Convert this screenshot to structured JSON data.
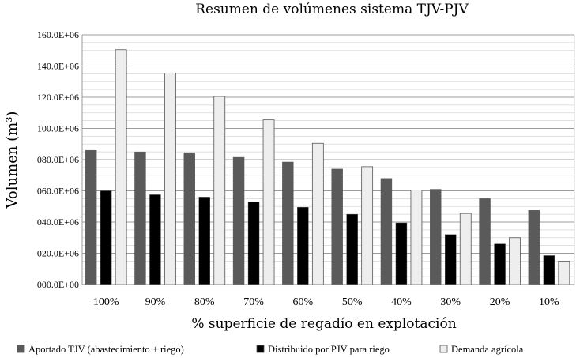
{
  "chart_data": {
    "type": "bar",
    "title": "Resumen de volúmenes sistema TJV-PJV",
    "xlabel": "% superficie de regadío en explotación",
    "ylabel": "Volumen (m³)",
    "ylim": [
      0,
      160000000
    ],
    "yticks": [
      0,
      20000000,
      40000000,
      60000000,
      80000000,
      100000000,
      120000000,
      140000000,
      160000000
    ],
    "ytick_labels": [
      "000.0E+00",
      "020.0E+06",
      "040.0E+06",
      "060.0E+06",
      "080.0E+06",
      "100.0E+06",
      "120.0E+06",
      "140.0E+06",
      "160.0E+06"
    ],
    "grid": true,
    "legend_position": "bottom",
    "categories": [
      "100%",
      "90%",
      "80%",
      "70%",
      "60%",
      "50%",
      "40%",
      "30%",
      "20%",
      "10%"
    ],
    "series": [
      {
        "name": "Aportado TJV (abastecimiento + riego)",
        "color": "#5a5a5a",
        "values": [
          86000000,
          85000000,
          84500000,
          81500000,
          78500000,
          74000000,
          68000000,
          61000000,
          55000000,
          47500000
        ]
      },
      {
        "name": "Distribuido por PJV para riego",
        "color": "#000000",
        "values": [
          60000000,
          57500000,
          56000000,
          53000000,
          49500000,
          45000000,
          39500000,
          32000000,
          26000000,
          18500000
        ]
      },
      {
        "name": "Demanda agrícola",
        "color": "#eeeeee",
        "values": [
          150500000,
          135500000,
          120500000,
          105500000,
          90500000,
          75500000,
          60500000,
          45500000,
          30000000,
          15000000
        ]
      }
    ]
  }
}
